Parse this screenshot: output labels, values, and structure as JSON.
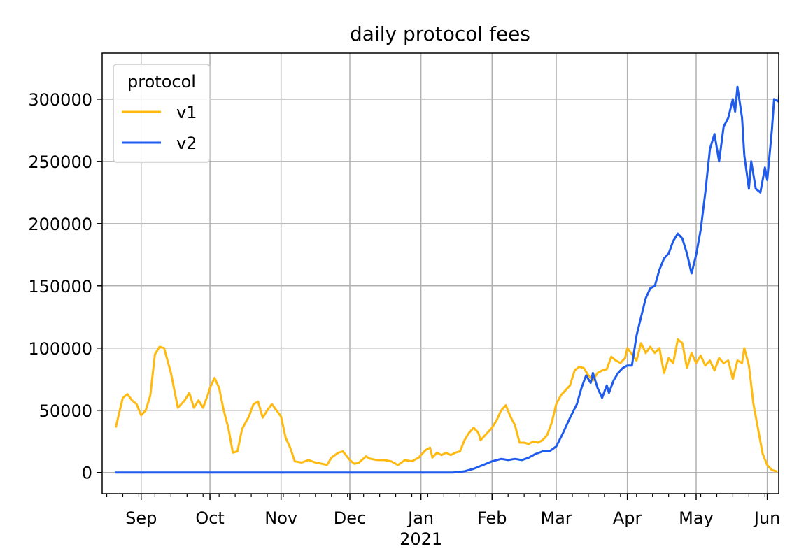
{
  "chart_data": {
    "type": "line",
    "title": "daily protocol fees",
    "xlabel": "",
    "ylabel": "",
    "legend": {
      "title": "protocol",
      "placement": "top-left"
    },
    "grid": true,
    "ylim": [
      -17000,
      337000
    ],
    "xlim": [
      "2020-08-15",
      "2021-06-06"
    ],
    "yticks": [
      0,
      50000,
      100000,
      150000,
      200000,
      250000,
      300000
    ],
    "ytick_labels": [
      "0",
      "50000",
      "100000",
      "150000",
      "200000",
      "250000",
      "300000"
    ],
    "xticks": [
      {
        "date": "2020-09-01",
        "label": "Sep"
      },
      {
        "date": "2020-10-01",
        "label": "Oct"
      },
      {
        "date": "2020-11-01",
        "label": "Nov"
      },
      {
        "date": "2020-12-01",
        "label": "Dec"
      },
      {
        "date": "2021-01-01",
        "label": "Jan",
        "sublabel": "2021"
      },
      {
        "date": "2021-02-01",
        "label": "Feb"
      },
      {
        "date": "2021-03-01",
        "label": "Mar"
      },
      {
        "date": "2021-04-01",
        "label": "Apr"
      },
      {
        "date": "2021-05-01",
        "label": "May"
      },
      {
        "date": "2021-06-01",
        "label": "Jun"
      }
    ],
    "series": [
      {
        "name": "v1",
        "color": "#FFB90F",
        "points": [
          [
            "2020-08-21",
            37000
          ],
          [
            "2020-08-24",
            60000
          ],
          [
            "2020-08-26",
            63000
          ],
          [
            "2020-08-28",
            58000
          ],
          [
            "2020-08-30",
            55000
          ],
          [
            "2020-09-01",
            46000
          ],
          [
            "2020-09-03",
            50000
          ],
          [
            "2020-09-05",
            62000
          ],
          [
            "2020-09-07",
            95000
          ],
          [
            "2020-09-09",
            101000
          ],
          [
            "2020-09-11",
            100000
          ],
          [
            "2020-09-14",
            80000
          ],
          [
            "2020-09-17",
            52000
          ],
          [
            "2020-09-20",
            58000
          ],
          [
            "2020-09-22",
            64000
          ],
          [
            "2020-09-24",
            52000
          ],
          [
            "2020-09-26",
            58000
          ],
          [
            "2020-09-28",
            52000
          ],
          [
            "2020-09-30",
            62000
          ],
          [
            "2020-10-01",
            68000
          ],
          [
            "2020-10-03",
            76000
          ],
          [
            "2020-10-05",
            68000
          ],
          [
            "2020-10-07",
            50000
          ],
          [
            "2020-10-09",
            36000
          ],
          [
            "2020-10-11",
            16000
          ],
          [
            "2020-10-13",
            17000
          ],
          [
            "2020-10-15",
            35000
          ],
          [
            "2020-10-18",
            45000
          ],
          [
            "2020-10-20",
            55000
          ],
          [
            "2020-10-22",
            57000
          ],
          [
            "2020-10-24",
            44000
          ],
          [
            "2020-10-26",
            50000
          ],
          [
            "2020-10-28",
            55000
          ],
          [
            "2020-10-30",
            50000
          ],
          [
            "2020-11-01",
            45000
          ],
          [
            "2020-11-03",
            28000
          ],
          [
            "2020-11-05",
            20000
          ],
          [
            "2020-11-07",
            9000
          ],
          [
            "2020-11-10",
            8000
          ],
          [
            "2020-11-13",
            10000
          ],
          [
            "2020-11-16",
            8000
          ],
          [
            "2020-11-19",
            7000
          ],
          [
            "2020-11-21",
            6000
          ],
          [
            "2020-11-23",
            12000
          ],
          [
            "2020-11-26",
            16000
          ],
          [
            "2020-11-28",
            17000
          ],
          [
            "2020-12-01",
            10000
          ],
          [
            "2020-12-03",
            7000
          ],
          [
            "2020-12-05",
            8000
          ],
          [
            "2020-12-08",
            13000
          ],
          [
            "2020-12-10",
            11000
          ],
          [
            "2020-12-13",
            10000
          ],
          [
            "2020-12-16",
            10000
          ],
          [
            "2020-12-19",
            9000
          ],
          [
            "2020-12-22",
            6000
          ],
          [
            "2020-12-25",
            10000
          ],
          [
            "2020-12-28",
            9000
          ],
          [
            "2020-12-31",
            12000
          ],
          [
            "2021-01-03",
            18000
          ],
          [
            "2021-01-05",
            20000
          ],
          [
            "2021-01-06",
            12000
          ],
          [
            "2021-01-08",
            16000
          ],
          [
            "2021-01-10",
            14000
          ],
          [
            "2021-01-12",
            16000
          ],
          [
            "2021-01-14",
            14000
          ],
          [
            "2021-01-16",
            16000
          ],
          [
            "2021-01-18",
            17000
          ],
          [
            "2021-01-20",
            26000
          ],
          [
            "2021-01-22",
            32000
          ],
          [
            "2021-01-24",
            36000
          ],
          [
            "2021-01-26",
            32000
          ],
          [
            "2021-01-27",
            26000
          ],
          [
            "2021-01-29",
            30000
          ],
          [
            "2021-02-01",
            36000
          ],
          [
            "2021-02-03",
            42000
          ],
          [
            "2021-02-05",
            50000
          ],
          [
            "2021-02-07",
            54000
          ],
          [
            "2021-02-09",
            45000
          ],
          [
            "2021-02-11",
            38000
          ],
          [
            "2021-02-13",
            24000
          ],
          [
            "2021-02-15",
            24000
          ],
          [
            "2021-02-17",
            23000
          ],
          [
            "2021-02-19",
            25000
          ],
          [
            "2021-02-21",
            24000
          ],
          [
            "2021-02-23",
            26000
          ],
          [
            "2021-02-25",
            30000
          ],
          [
            "2021-02-27",
            40000
          ],
          [
            "2021-03-01",
            55000
          ],
          [
            "2021-03-03",
            62000
          ],
          [
            "2021-03-05",
            66000
          ],
          [
            "2021-03-07",
            70000
          ],
          [
            "2021-03-09",
            82000
          ],
          [
            "2021-03-11",
            85000
          ],
          [
            "2021-03-13",
            84000
          ],
          [
            "2021-03-15",
            78000
          ],
          [
            "2021-03-17",
            74000
          ],
          [
            "2021-03-19",
            80000
          ],
          [
            "2021-03-21",
            82000
          ],
          [
            "2021-03-23",
            83000
          ],
          [
            "2021-03-25",
            93000
          ],
          [
            "2021-03-27",
            90000
          ],
          [
            "2021-03-29",
            88000
          ],
          [
            "2021-03-31",
            92000
          ],
          [
            "2021-04-01",
            100000
          ],
          [
            "2021-04-03",
            95000
          ],
          [
            "2021-04-05",
            90000
          ],
          [
            "2021-04-07",
            104000
          ],
          [
            "2021-04-09",
            96000
          ],
          [
            "2021-04-11",
            101000
          ],
          [
            "2021-04-13",
            96000
          ],
          [
            "2021-04-15",
            100000
          ],
          [
            "2021-04-17",
            80000
          ],
          [
            "2021-04-19",
            92000
          ],
          [
            "2021-04-21",
            88000
          ],
          [
            "2021-04-23",
            107000
          ],
          [
            "2021-04-25",
            104000
          ],
          [
            "2021-04-27",
            84000
          ],
          [
            "2021-04-29",
            96000
          ],
          [
            "2021-05-01",
            88000
          ],
          [
            "2021-05-03",
            94000
          ],
          [
            "2021-05-05",
            86000
          ],
          [
            "2021-05-07",
            90000
          ],
          [
            "2021-05-09",
            82000
          ],
          [
            "2021-05-11",
            92000
          ],
          [
            "2021-05-13",
            88000
          ],
          [
            "2021-05-15",
            90000
          ],
          [
            "2021-05-17",
            75000
          ],
          [
            "2021-05-19",
            90000
          ],
          [
            "2021-05-21",
            88000
          ],
          [
            "2021-05-22",
            100000
          ],
          [
            "2021-05-24",
            86000
          ],
          [
            "2021-05-26",
            55000
          ],
          [
            "2021-05-28",
            35000
          ],
          [
            "2021-05-30",
            15000
          ],
          [
            "2021-06-01",
            6000
          ],
          [
            "2021-06-03",
            2000
          ],
          [
            "2021-06-05",
            1000
          ]
        ]
      },
      {
        "name": "v2",
        "color": "#1E5BEF",
        "points": [
          [
            "2020-08-21",
            0
          ],
          [
            "2021-01-15",
            0
          ],
          [
            "2021-01-20",
            1000
          ],
          [
            "2021-01-24",
            3000
          ],
          [
            "2021-01-28",
            6000
          ],
          [
            "2021-02-01",
            9000
          ],
          [
            "2021-02-05",
            11000
          ],
          [
            "2021-02-08",
            10000
          ],
          [
            "2021-02-11",
            11000
          ],
          [
            "2021-02-14",
            10000
          ],
          [
            "2021-02-17",
            12000
          ],
          [
            "2021-02-20",
            15000
          ],
          [
            "2021-02-23",
            17000
          ],
          [
            "2021-02-26",
            17000
          ],
          [
            "2021-03-01",
            21000
          ],
          [
            "2021-03-04",
            32000
          ],
          [
            "2021-03-07",
            44000
          ],
          [
            "2021-03-10",
            55000
          ],
          [
            "2021-03-12",
            68000
          ],
          [
            "2021-03-14",
            78000
          ],
          [
            "2021-03-16",
            72000
          ],
          [
            "2021-03-17",
            80000
          ],
          [
            "2021-03-19",
            68000
          ],
          [
            "2021-03-21",
            60000
          ],
          [
            "2021-03-23",
            70000
          ],
          [
            "2021-03-24",
            64000
          ],
          [
            "2021-03-26",
            74000
          ],
          [
            "2021-03-28",
            80000
          ],
          [
            "2021-03-30",
            84000
          ],
          [
            "2021-04-01",
            86000
          ],
          [
            "2021-04-03",
            86000
          ],
          [
            "2021-04-05",
            110000
          ],
          [
            "2021-04-07",
            125000
          ],
          [
            "2021-04-09",
            140000
          ],
          [
            "2021-04-11",
            148000
          ],
          [
            "2021-04-13",
            150000
          ],
          [
            "2021-04-15",
            163000
          ],
          [
            "2021-04-17",
            172000
          ],
          [
            "2021-04-19",
            176000
          ],
          [
            "2021-04-21",
            186000
          ],
          [
            "2021-04-23",
            192000
          ],
          [
            "2021-04-25",
            188000
          ],
          [
            "2021-04-27",
            176000
          ],
          [
            "2021-04-29",
            160000
          ],
          [
            "2021-05-01",
            175000
          ],
          [
            "2021-05-03",
            195000
          ],
          [
            "2021-05-05",
            225000
          ],
          [
            "2021-05-07",
            260000
          ],
          [
            "2021-05-09",
            272000
          ],
          [
            "2021-05-11",
            250000
          ],
          [
            "2021-05-13",
            278000
          ],
          [
            "2021-05-15",
            285000
          ],
          [
            "2021-05-17",
            300000
          ],
          [
            "2021-05-18",
            290000
          ],
          [
            "2021-05-19",
            310000
          ],
          [
            "2021-05-21",
            285000
          ],
          [
            "2021-05-22",
            255000
          ],
          [
            "2021-05-24",
            228000
          ],
          [
            "2021-05-25",
            250000
          ],
          [
            "2021-05-27",
            228000
          ],
          [
            "2021-05-29",
            225000
          ],
          [
            "2021-05-31",
            245000
          ],
          [
            "2021-06-01",
            235000
          ],
          [
            "2021-06-03",
            275000
          ],
          [
            "2021-06-04",
            300000
          ],
          [
            "2021-06-06",
            298000
          ],
          [
            "2021-06-07",
            322000
          ],
          [
            "2021-06-07",
            315000
          ]
        ]
      }
    ]
  }
}
